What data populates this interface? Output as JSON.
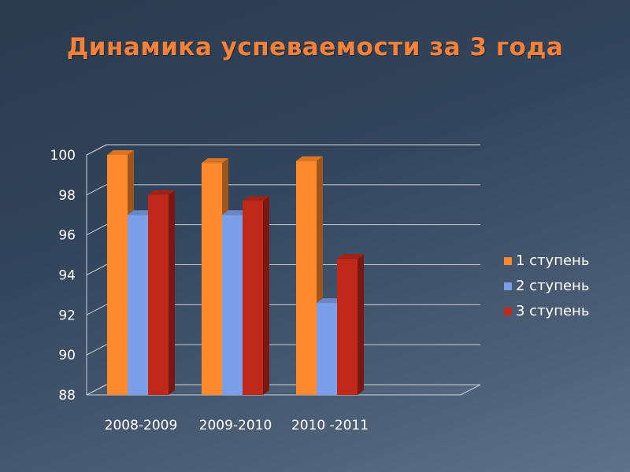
{
  "title": "Динамика успеваемости за 3 года",
  "colors": {
    "background": "#33455c",
    "title": "#f4813a"
  },
  "chart_data": {
    "type": "bar",
    "categories": [
      "2008-2009",
      "2009-2010",
      "2010 -2011"
    ],
    "series": [
      {
        "name": "1 ступень",
        "values": [
          100,
          99.6,
          99.7
        ],
        "color": "#ff8a2e"
      },
      {
        "name": "2 ступень",
        "values": [
          97,
          97,
          92.6
        ],
        "color": "#7b9ee8"
      },
      {
        "name": "3 ступень",
        "values": [
          98,
          97.7,
          94.8
        ],
        "color": "#c0281a"
      }
    ],
    "ylim": [
      88,
      100
    ],
    "yticks": [
      88,
      90,
      92,
      94,
      96,
      98,
      100
    ],
    "grid": true,
    "legend": "right",
    "style": "3d-clustered-column"
  }
}
